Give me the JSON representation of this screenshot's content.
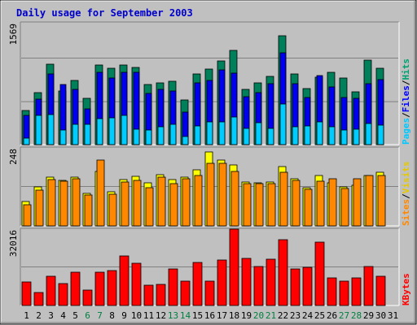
{
  "chart_data": {
    "type": "bar",
    "title": "Daily usage for September 2003",
    "categories": [
      "1",
      "2",
      "3",
      "4",
      "5",
      "6",
      "7",
      "8",
      "9",
      "10",
      "11",
      "12",
      "13",
      "14",
      "15",
      "16",
      "17",
      "18",
      "19",
      "20",
      "21",
      "22",
      "23",
      "24",
      "25",
      "26",
      "27",
      "28",
      "29",
      "30",
      "31"
    ],
    "weekend_days": [
      "6",
      "7",
      "13",
      "14",
      "20",
      "21",
      "27",
      "28"
    ],
    "panels": [
      {
        "id": "hits",
        "ymax": 1569,
        "ytick_label": "1569",
        "right_labels": [
          {
            "text": "Pages",
            "color": "#00c8ff"
          },
          {
            "text": "/",
            "color": "#000000"
          },
          {
            "text": "Files",
            "color": "#0000ff"
          },
          {
            "text": "/",
            "color": "#000000"
          },
          {
            "text": "Hits",
            "color": "#00a070"
          }
        ],
        "series": [
          {
            "name": "Hits",
            "color": "#00805a",
            "values": [
              450,
              680,
              1040,
              700,
              830,
              600,
              1030,
              985,
              1030,
              1000,
              780,
              800,
              820,
              580,
              910,
              980,
              1085,
              1220,
              720,
              800,
              880,
              1405,
              910,
              730,
              870,
              935,
              860,
              690,
              1090,
              990,
              0
            ]
          },
          {
            "name": "Files",
            "color": "#0000ee",
            "values": [
              385,
              590,
              910,
              780,
              720,
              470,
              930,
              860,
              935,
              940,
              670,
              720,
              700,
              430,
              800,
              830,
              970,
              920,
              620,
              680,
              790,
              1180,
              785,
              610,
              890,
              750,
              610,
              600,
              790,
              840,
              0
            ]
          },
          {
            "name": "Pages",
            "color": "#00ccff",
            "values": [
              90,
              380,
              390,
              200,
              270,
              270,
              340,
              350,
              380,
              210,
              200,
              240,
              270,
              110,
              250,
              300,
              300,
              360,
              220,
              290,
              220,
              530,
              240,
              250,
              300,
              240,
              200,
              210,
              280,
              260,
              0
            ]
          }
        ]
      },
      {
        "id": "visits",
        "ymax": 248,
        "ytick_label": "248",
        "right_labels": [
          {
            "text": "Sites",
            "color": "#ff8800"
          },
          {
            "text": "/",
            "color": "#000000"
          },
          {
            "text": "Visits",
            "color": "#e6c800"
          }
        ],
        "series": [
          {
            "name": "Visits",
            "color": "#ffff00",
            "values": [
              80,
              125,
              155,
              145,
              155,
              105,
              175,
              110,
              148,
              158,
              138,
              164,
              148,
              155,
              180,
              235,
              210,
              195,
              140,
              138,
              140,
              190,
              150,
              123,
              160,
              138,
              125,
              130,
              160,
              172,
              0
            ]
          },
          {
            "name": "Sites",
            "color": "#ff8800",
            "values": [
              70,
              115,
              148,
              142,
              152,
              100,
              210,
              101,
              140,
              146,
              123,
              156,
              136,
              152,
              162,
              200,
              200,
              175,
              136,
              136,
              136,
              172,
              145,
              117,
              142,
              150,
              120,
              150,
              160,
              160,
              0
            ]
          }
        ]
      },
      {
        "id": "kbytes",
        "ymax": 32016,
        "ytick_label": "32016",
        "right_labels": [
          {
            "text": "KBytes",
            "color": "#ff0000"
          }
        ],
        "series": [
          {
            "name": "KBytes",
            "color": "#ff0000",
            "values": [
              10200,
              5800,
              12600,
              9400,
              14000,
              6700,
              14200,
              14800,
              21000,
              17700,
              8900,
              9200,
              15500,
              10300,
              18200,
              10300,
              19300,
              32000,
              20000,
              16500,
              19500,
              27800,
              15500,
              16300,
              26500,
              11900,
              10600,
              11800,
              16500,
              12500,
              0
            ]
          }
        ]
      }
    ]
  }
}
